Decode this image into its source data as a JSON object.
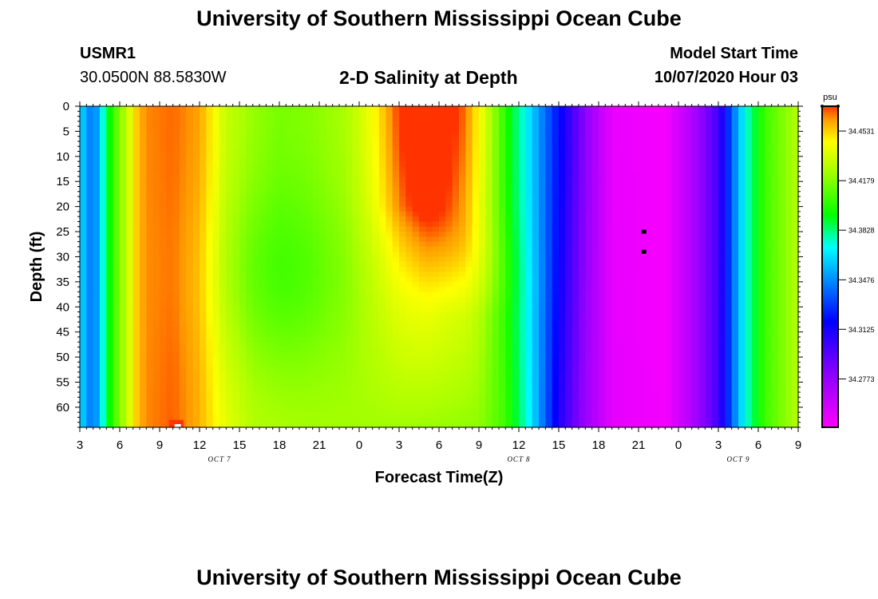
{
  "header": {
    "title": "University of Southern Mississippi Ocean Cube",
    "station_id": "USMR1",
    "station_coords": "30.0500N 88.5830W",
    "plot_title": "2-D Salinity at Depth",
    "model_start_label": "Model Start Time",
    "model_start_value": "10/07/2020 Hour 03"
  },
  "footer": {
    "title": "University of Southern Mississippi Ocean Cube"
  },
  "colors": {
    "magenta": "#ff00ff",
    "purple": "#8800ff",
    "blue": "#0000ff",
    "azure": "#0099ff",
    "cyan": "#00ffff",
    "green": "#00ff00",
    "yellow_green": "#aaff00",
    "yellow": "#ffff00",
    "orange": "#ff9900",
    "red_orange": "#ff3300"
  },
  "chart_data": {
    "type": "heatmap",
    "title": "2-D Salinity at Depth",
    "xlabel": "Forecast Time(Z)",
    "ylabel": "Depth (ft)",
    "x_range_hours": [
      0,
      54
    ],
    "x_tick_labels": [
      "3",
      "6",
      "9",
      "12",
      "15",
      "18",
      "21",
      "0",
      "3",
      "6",
      "9",
      "12",
      "15",
      "18",
      "21",
      "0",
      "3",
      "6",
      "9"
    ],
    "date_labels": [
      {
        "label": "OCT 7",
        "hour": 10.5
      },
      {
        "label": "OCT 8",
        "hour": 33
      },
      {
        "label": "OCT 9",
        "hour": 49.5
      }
    ],
    "y_range_ft": [
      0,
      64
    ],
    "y_tick_labels": [
      "0",
      "5",
      "10",
      "15",
      "20",
      "25",
      "30",
      "35",
      "40",
      "45",
      "50",
      "55",
      "60"
    ],
    "colorbar": {
      "unit": "psu",
      "min": 34.243,
      "max": 34.4707,
      "ticks": [
        34.4531,
        34.4179,
        34.3828,
        34.3476,
        34.3125,
        34.2773
      ],
      "tick_labels": [
        "34.4531",
        "34.4179",
        "34.3828",
        "34.3476",
        "34.3125",
        "34.2773"
      ]
    },
    "surface_profile": [
      [
        0,
        34.366
      ],
      [
        0.5,
        34.351
      ],
      [
        1.0,
        34.341
      ],
      [
        1.3,
        34.352
      ],
      [
        1.8,
        34.376
      ],
      [
        2.5,
        34.404
      ],
      [
        3.5,
        34.43
      ],
      [
        4.3,
        34.455
      ],
      [
        5.0,
        34.463
      ],
      [
        7.0,
        34.466
      ],
      [
        9.0,
        34.46
      ],
      [
        10.0,
        34.447
      ],
      [
        11.0,
        34.432
      ],
      [
        13.0,
        34.422
      ],
      [
        15.0,
        34.416
      ],
      [
        17.0,
        34.418
      ],
      [
        20.0,
        34.425
      ],
      [
        22.0,
        34.44
      ],
      [
        24.0,
        34.458
      ],
      [
        26.0,
        34.464
      ],
      [
        29.0,
        34.452
      ],
      [
        30.5,
        34.43
      ],
      [
        32.0,
        34.398
      ],
      [
        34.0,
        34.36
      ],
      [
        36.0,
        34.32
      ],
      [
        38.0,
        34.28
      ],
      [
        40.0,
        34.25
      ],
      [
        44.0,
        34.246
      ],
      [
        46.0,
        34.268
      ],
      [
        48.0,
        34.3
      ],
      [
        48.5,
        34.318
      ],
      [
        49.0,
        34.338
      ],
      [
        50.0,
        34.372
      ],
      [
        51.5,
        34.405
      ],
      [
        54.0,
        34.428
      ]
    ],
    "bottom_profile": [
      [
        0,
        34.366
      ],
      [
        0.5,
        34.351
      ],
      [
        1.0,
        34.341
      ],
      [
        1.3,
        34.352
      ],
      [
        1.8,
        34.376
      ],
      [
        2.5,
        34.404
      ],
      [
        3.5,
        34.43
      ],
      [
        4.3,
        34.455
      ],
      [
        5.0,
        34.463
      ],
      [
        7.0,
        34.467
      ],
      [
        9.0,
        34.458
      ],
      [
        11.0,
        34.44
      ],
      [
        13.0,
        34.428
      ],
      [
        16.0,
        34.425
      ],
      [
        20.0,
        34.424
      ],
      [
        25.0,
        34.423
      ],
      [
        30.0,
        34.42
      ],
      [
        32.0,
        34.405
      ],
      [
        34.0,
        34.365
      ],
      [
        36.0,
        34.31
      ],
      [
        38.0,
        34.275
      ],
      [
        40.0,
        34.252
      ],
      [
        44.0,
        34.246
      ],
      [
        46.0,
        34.268
      ],
      [
        48.0,
        34.3
      ],
      [
        48.5,
        34.318
      ],
      [
        49.0,
        34.338
      ],
      [
        50.0,
        34.372
      ],
      [
        51.5,
        34.405
      ],
      [
        54.0,
        34.428
      ]
    ],
    "mid_green_anomaly": {
      "center_hour": 15,
      "center_depth_ft": 34,
      "strength": -0.014
    },
    "orange_tongue": {
      "center_hour": 26.5,
      "tip_hour": 30.5,
      "max_depth_ft": 40,
      "strength": 0.038
    },
    "black_markers": [
      {
        "hour": 42.4,
        "depth_ft": 25
      },
      {
        "hour": 42.4,
        "depth_ft": 29
      }
    ],
    "red_patch": {
      "hour_start": 6.7,
      "hour_end": 7.8,
      "depth_start_ft": 63,
      "depth_end_ft": 64
    }
  }
}
